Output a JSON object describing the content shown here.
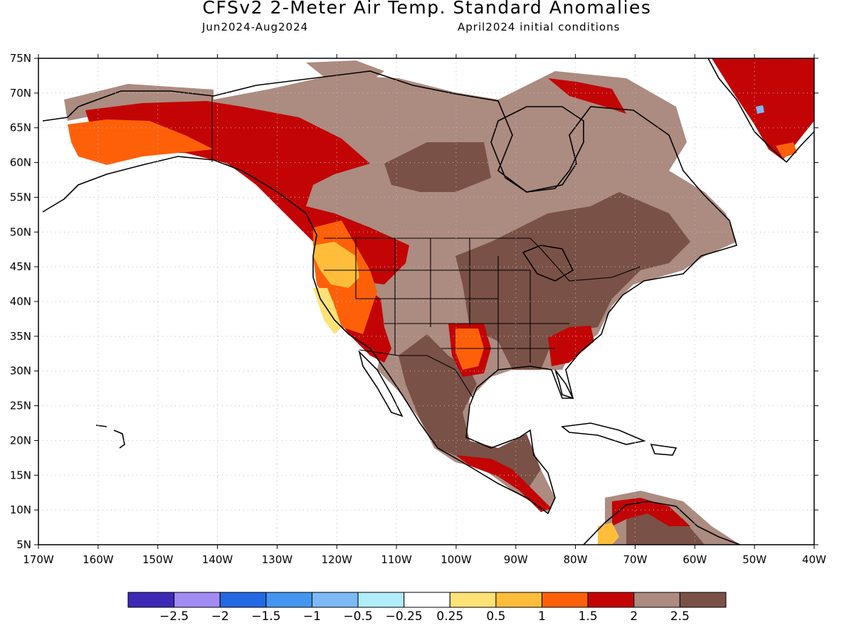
{
  "title": "CFSv2 2-Meter Air Temp. Standard Anomalies",
  "subtitle_left": "Jun2024-Aug2024",
  "subtitle_right": "April2024 initial conditions",
  "lat_labels": [
    "75N",
    "70N",
    "65N",
    "60N",
    "55N",
    "50N",
    "45N",
    "40N",
    "35N",
    "30N",
    "25N",
    "20N",
    "15N",
    "10N",
    "5N"
  ],
  "lon_labels": [
    "170W",
    "160W",
    "150W",
    "140W",
    "130W",
    "120W",
    "110W",
    "100W",
    "90W",
    "80W",
    "70W",
    "60W",
    "50W",
    "40W"
  ],
  "lat_values": [
    75,
    70,
    65,
    60,
    55,
    50,
    45,
    40,
    35,
    30,
    25,
    20,
    15,
    10,
    5
  ],
  "lon_values": [
    -170,
    -160,
    -150,
    -140,
    -130,
    -120,
    -110,
    -100,
    -90,
    -80,
    -70,
    -60,
    -50,
    -40
  ],
  "colorbar": {
    "colors": [
      "#3d29b4",
      "#a28cf3",
      "#2369e4",
      "#4396ef",
      "#7cb9f5",
      "#b1eef9",
      "#ffffff",
      "#fee276",
      "#ffbd3a",
      "#fe6009",
      "#c30405",
      "#ac8b80",
      "#7a5146"
    ],
    "labels": [
      "-2.5",
      "-2",
      "-1.5",
      "-1",
      "-0.5",
      "-0.25",
      "0.25",
      "0.5",
      "1",
      "1.5",
      "2",
      "2.5"
    ]
  },
  "colors": {
    "dark_brown": "#7a5146",
    "light_brown": "#ac8b80",
    "dark_red": "#c30405",
    "orange_red": "#fe6009",
    "orange": "#ffbd3a",
    "yellow": "#fee276",
    "light_blue": "#7cb9f5"
  }
}
